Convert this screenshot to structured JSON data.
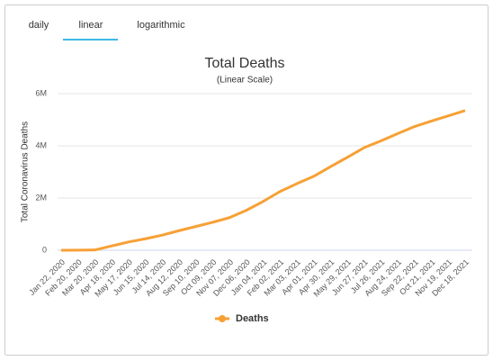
{
  "tabs": [
    "daily",
    "linear",
    "logarithmic"
  ],
  "chart_data": {
    "type": "line",
    "title": "Total Deaths",
    "subtitle": "(Linear Scale)",
    "y_label": "Total Coronavirus Deaths",
    "categories": [
      "Jan 22, 2020",
      "Feb 20, 2020",
      "Mar 20, 2020",
      "Apr 18, 2020",
      "May 17, 2020",
      "Jun 15, 2020",
      "Jul 14, 2020",
      "Aug 12, 2020",
      "Sep 10, 2020",
      "Oct 09, 2020",
      "Nov 07, 2020",
      "Dec 06, 2020",
      "Jan 04, 2021",
      "Feb 02, 2021",
      "Mar 03, 2021",
      "Apr 01, 2021",
      "Apr 30, 2021",
      "May 29, 2021",
      "Jun 27, 2021",
      "Jul 26, 2021",
      "Aug 24, 2021",
      "Sep 22, 2021",
      "Oct 21, 2021",
      "Nov 19, 2021",
      "Dec 18, 2021"
    ],
    "series": [
      {
        "name": "Deaths",
        "color": "#f7a035",
        "values": [
          17,
          2250,
          11000,
          165000,
          316000,
          440000,
          580000,
          750000,
          910000,
          1070000,
          1250000,
          1530000,
          1870000,
          2250000,
          2550000,
          2830000,
          3200000,
          3560000,
          3930000,
          4190000,
          4470000,
          4740000,
          4950000,
          5150000,
          5350000
        ]
      }
    ],
    "ylim": [
      0,
      6000000
    ],
    "yticks": [
      0,
      {
        "value": 2000000,
        "label": "2M"
      },
      {
        "value": 4000000,
        "label": "4M"
      },
      {
        "value": 6000000,
        "label": "6M"
      }
    ],
    "grid": true,
    "legend": "bottom"
  }
}
